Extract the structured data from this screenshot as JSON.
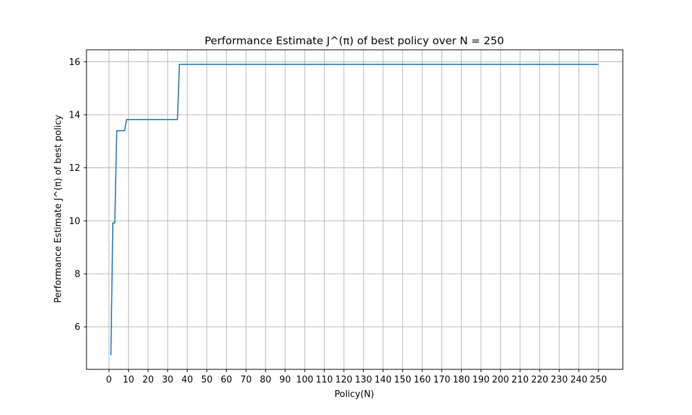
{
  "chart_data": {
    "type": "line",
    "title": "Performance Estimate J^(π) of best policy over N = 250",
    "xlabel": "Policy(N)",
    "ylabel": "Performance Estimate J^(π) of best policy",
    "xlim": [
      -11.45,
      262.45
    ],
    "ylim": [
      4.4,
      16.45
    ],
    "xticks": [
      0,
      10,
      20,
      30,
      40,
      50,
      60,
      70,
      80,
      90,
      100,
      110,
      120,
      130,
      140,
      150,
      160,
      170,
      180,
      190,
      200,
      210,
      220,
      230,
      240,
      250
    ],
    "yticks": [
      6,
      8,
      10,
      12,
      14,
      16
    ],
    "grid": true,
    "line_color": "#1f77b4",
    "series": [
      {
        "x": [
          1,
          2,
          3,
          4,
          5,
          6,
          7,
          8,
          9,
          10,
          35,
          36,
          37,
          250
        ],
        "y": [
          4.93,
          9.92,
          9.92,
          13.4,
          13.4,
          13.4,
          13.4,
          13.4,
          13.82,
          13.82,
          13.82,
          15.9,
          15.9,
          15.9
        ]
      }
    ]
  }
}
